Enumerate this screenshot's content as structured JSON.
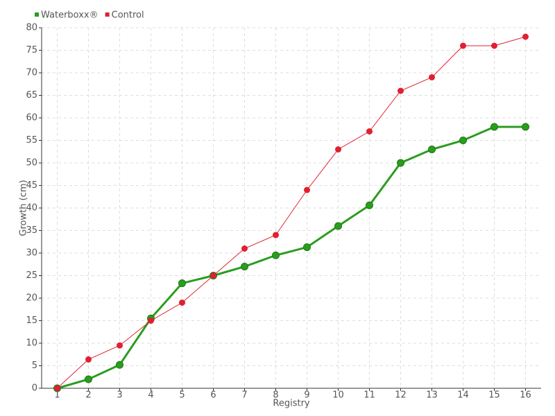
{
  "chart_data": {
    "type": "line",
    "x_label": "Registry",
    "y_label": "Growth (cm)",
    "categories": [
      "1",
      "2",
      "3",
      "4",
      "5",
      "6",
      "7",
      "8",
      "9",
      "10",
      "11",
      "12",
      "13",
      "14",
      "15",
      "16"
    ],
    "series": [
      {
        "name": "Waterboxx®",
        "color": "#2a9d1e",
        "values": [
          0,
          2,
          5.2,
          15.5,
          23.3,
          25,
          27,
          29.5,
          31.3,
          36,
          40.6,
          50,
          53,
          55,
          58,
          58
        ]
      },
      {
        "name": "Control",
        "color": "#e02030",
        "values": [
          0,
          6.4,
          9.5,
          15,
          19,
          25,
          31,
          34,
          44,
          53,
          57,
          66,
          69,
          76,
          76,
          78
        ]
      }
    ],
    "ylim": [
      0,
      80
    ],
    "yticks": [
      0,
      5,
      10,
      15,
      20,
      25,
      30,
      35,
      40,
      45,
      50,
      55,
      60,
      65,
      70,
      75,
      80
    ],
    "grid": true,
    "legend": "top-left"
  }
}
